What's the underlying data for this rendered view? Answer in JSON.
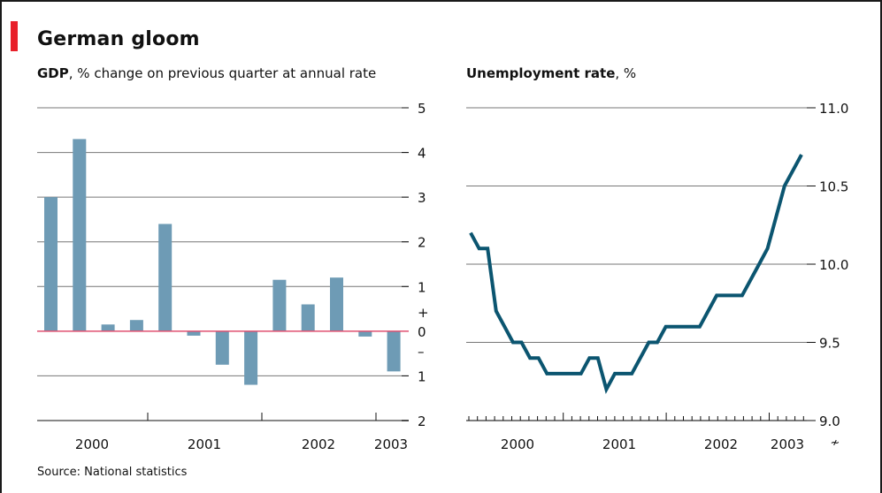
{
  "title": "German gloom",
  "source": "Source: National statistics",
  "colors": {
    "bar": "#6e9bb5",
    "line": "#0b5570",
    "accent": "#e8202a",
    "zero_line": "#e05070"
  },
  "chart_data": [
    {
      "type": "bar",
      "title_bold": "GDP",
      "title_rest": ", % change on previous quarter at annual rate",
      "ylim": [
        -2,
        5
      ],
      "yticks": [
        5,
        4,
        3,
        2,
        1,
        0,
        -1,
        -2
      ],
      "ytick_labels": [
        "5",
        "4",
        "3",
        "2",
        "1",
        "0",
        "1",
        "2"
      ],
      "sign_labels": {
        "plus": "+",
        "minus": "–"
      },
      "years": [
        "2000",
        "2001",
        "2002",
        "2003"
      ],
      "values": [
        3.0,
        4.3,
        0.15,
        0.25,
        2.4,
        -0.1,
        -0.75,
        -1.2,
        1.15,
        0.6,
        1.2,
        -0.12,
        -0.9
      ],
      "grid": true
    },
    {
      "type": "line",
      "title_bold": "Unemployment rate",
      "title_rest": ", %",
      "ylim": [
        9.0,
        11.0
      ],
      "yticks": [
        11.0,
        10.5,
        10.0,
        9.5,
        9.0
      ],
      "ytick_labels": [
        "11.0",
        "10.5",
        "10.0",
        "9.5",
        "9.0"
      ],
      "years": [
        "2000",
        "2001",
        "2002",
        "2003"
      ],
      "values": [
        10.2,
        10.1,
        10.1,
        9.7,
        9.6,
        9.5,
        9.5,
        9.4,
        9.4,
        9.3,
        9.3,
        9.3,
        9.3,
        9.3,
        9.4,
        9.4,
        9.2,
        9.3,
        9.3,
        9.3,
        9.4,
        9.5,
        9.5,
        9.6,
        9.6,
        9.6,
        9.6,
        9.6,
        9.7,
        9.8,
        9.8,
        9.8,
        9.8,
        9.9,
        10.0,
        10.1,
        10.3,
        10.5,
        10.6,
        10.7
      ],
      "grid": true
    }
  ]
}
